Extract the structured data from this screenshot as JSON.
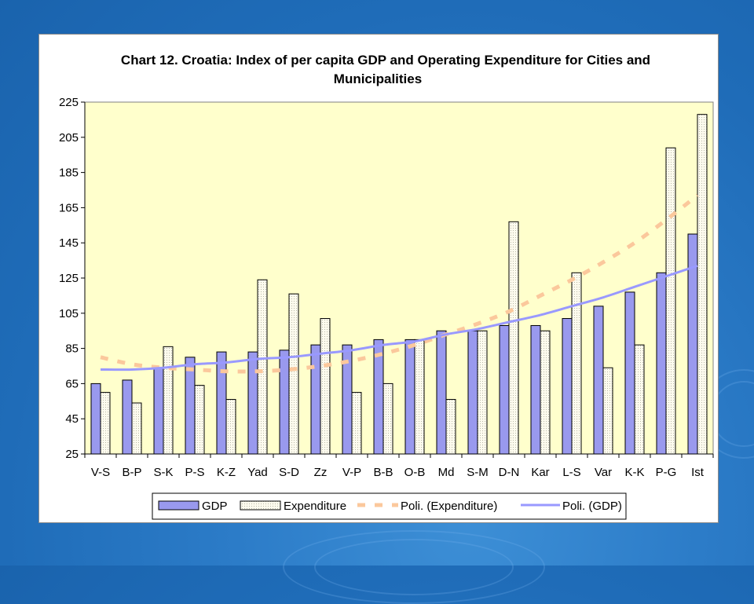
{
  "colors": {
    "background": "#1f6cb8",
    "plot_area": "#ffffcc",
    "gdp_bar": "#9999ee",
    "expenditure_bar": "#fdfbee",
    "trend_expenditure": "#fbc89c",
    "trend_gdp": "#9999ff"
  },
  "chart_data": {
    "type": "bar",
    "title": "Chart 12. Croatia: Index of per capita GDP and Operating Expenditure for Cities and Municipalities",
    "title_lines": [
      "Chart 12. Croatia: Index of per capita GDP and Operating Expenditure for Cities and",
      "Municipalities"
    ],
    "xlabel": "",
    "ylabel": "",
    "ylim": [
      25,
      225
    ],
    "yticks": [
      25,
      45,
      65,
      85,
      105,
      125,
      145,
      165,
      185,
      205,
      225
    ],
    "grid": false,
    "legend_position": "bottom",
    "categories": [
      "V-S",
      "B-P",
      "S-K",
      "P-S",
      "K-Z",
      "Yad",
      "S-D",
      "Zz",
      "V-P",
      "B-B",
      "O-B",
      "Md",
      "S-M",
      "D-N",
      "Kar",
      "L-S",
      "Var",
      "K-K",
      "P-G",
      "Ist"
    ],
    "series": [
      {
        "name": "GDP",
        "kind": "bar",
        "values": [
          65,
          67,
          74,
          80,
          83,
          83,
          84,
          87,
          87,
          90,
          90,
          95,
          95,
          98,
          98,
          102,
          109,
          117,
          128,
          150
        ]
      },
      {
        "name": "Expenditure",
        "kind": "bar",
        "values": [
          60,
          54,
          86,
          64,
          56,
          124,
          116,
          102,
          60,
          65,
          90,
          56,
          95,
          157,
          95,
          128,
          74,
          87,
          199,
          218
        ]
      },
      {
        "name": "Poli. (Expenditure)",
        "kind": "trendline",
        "style": "dashed",
        "values": [
          80,
          76,
          74,
          73,
          72,
          72,
          73,
          75,
          78,
          82,
          87,
          93,
          99,
          106,
          115,
          124,
          134,
          145,
          158,
          172
        ]
      },
      {
        "name": "Poli. (GDP)",
        "kind": "trendline",
        "style": "solid",
        "values": [
          73,
          73,
          74,
          76,
          77,
          79,
          80,
          82,
          84,
          87,
          89,
          93,
          96,
          100,
          104,
          109,
          114,
          120,
          126,
          132
        ]
      }
    ]
  }
}
